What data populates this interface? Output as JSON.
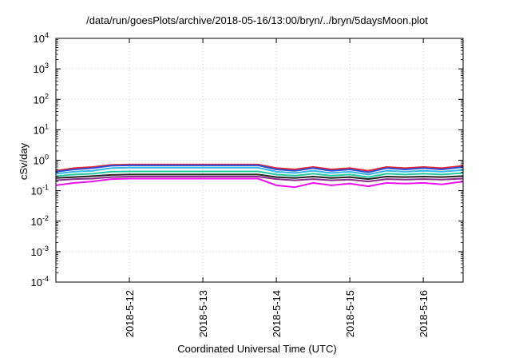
{
  "chart_data": {
    "type": "line",
    "title": "/data/run/goesPlots/archive/2018-05-16/13:00/bryn/../bryn/5daysMoon.plot",
    "xlabel": "Coordinated Universal Time (UTC)",
    "ylabel": "cSv/day",
    "yscale": "log",
    "ylim": [
      0.0001,
      10000
    ],
    "yticks": [
      {
        "base": "10",
        "exp": "-4"
      },
      {
        "base": "10",
        "exp": "-3"
      },
      {
        "base": "10",
        "exp": "-2"
      },
      {
        "base": "10",
        "exp": "-1"
      },
      {
        "base": "10",
        "exp": "0"
      },
      {
        "base": "10",
        "exp": "1"
      },
      {
        "base": "10",
        "exp": "2"
      },
      {
        "base": "10",
        "exp": "3"
      },
      {
        "base": "10",
        "exp": "4"
      }
    ],
    "xlim": [
      "2018-05-11 00:00",
      "2018-05-16 13:00"
    ],
    "xticks": [
      "2018-5-12",
      "2018-5-13",
      "2018-5-14",
      "2018-5-15",
      "2018-5-16"
    ],
    "grid": true,
    "x": [
      "2018-05-11 00:00",
      "2018-05-11 06:00",
      "2018-05-11 12:00",
      "2018-05-11 18:00",
      "2018-05-12 00:00",
      "2018-05-12 12:00",
      "2018-05-13 00:00",
      "2018-05-13 12:00",
      "2018-05-13 18:00",
      "2018-05-14 00:00",
      "2018-05-14 06:00",
      "2018-05-14 12:00",
      "2018-05-14 18:00",
      "2018-05-15 00:00",
      "2018-05-15 06:00",
      "2018-05-15 12:00",
      "2018-05-15 18:00",
      "2018-05-16 00:00",
      "2018-05-16 06:00",
      "2018-05-16 13:00"
    ],
    "series": [
      {
        "color": "#e8212e",
        "values": [
          0.45,
          0.55,
          0.6,
          0.7,
          0.72,
          0.72,
          0.72,
          0.72,
          0.72,
          0.55,
          0.5,
          0.6,
          0.5,
          0.55,
          0.45,
          0.6,
          0.55,
          0.6,
          0.55,
          0.65
        ]
      },
      {
        "color": "#2b4fd8",
        "values": [
          0.42,
          0.5,
          0.55,
          0.66,
          0.68,
          0.68,
          0.68,
          0.68,
          0.68,
          0.5,
          0.45,
          0.55,
          0.45,
          0.5,
          0.4,
          0.55,
          0.5,
          0.55,
          0.5,
          0.6
        ]
      },
      {
        "color": "#33b4e8",
        "values": [
          0.36,
          0.42,
          0.45,
          0.55,
          0.57,
          0.57,
          0.57,
          0.57,
          0.57,
          0.42,
          0.38,
          0.45,
          0.38,
          0.42,
          0.34,
          0.45,
          0.42,
          0.45,
          0.42,
          0.48
        ]
      },
      {
        "color": "#22c9a0",
        "values": [
          0.3,
          0.34,
          0.36,
          0.42,
          0.43,
          0.43,
          0.43,
          0.43,
          0.43,
          0.34,
          0.31,
          0.36,
          0.31,
          0.34,
          0.28,
          0.36,
          0.34,
          0.36,
          0.34,
          0.38
        ]
      },
      {
        "color": "#222222",
        "values": [
          0.26,
          0.28,
          0.3,
          0.33,
          0.34,
          0.34,
          0.34,
          0.34,
          0.34,
          0.28,
          0.26,
          0.29,
          0.26,
          0.28,
          0.24,
          0.29,
          0.28,
          0.29,
          0.28,
          0.3
        ]
      },
      {
        "color": "#8a2a8a",
        "values": [
          0.22,
          0.24,
          0.25,
          0.28,
          0.29,
          0.29,
          0.29,
          0.29,
          0.29,
          0.24,
          0.22,
          0.24,
          0.22,
          0.23,
          0.2,
          0.24,
          0.23,
          0.24,
          0.23,
          0.25
        ]
      },
      {
        "color": "#ee11ee",
        "values": [
          0.15,
          0.18,
          0.2,
          0.24,
          0.25,
          0.25,
          0.25,
          0.25,
          0.25,
          0.15,
          0.13,
          0.18,
          0.15,
          0.17,
          0.14,
          0.18,
          0.17,
          0.18,
          0.16,
          0.2
        ]
      }
    ]
  }
}
